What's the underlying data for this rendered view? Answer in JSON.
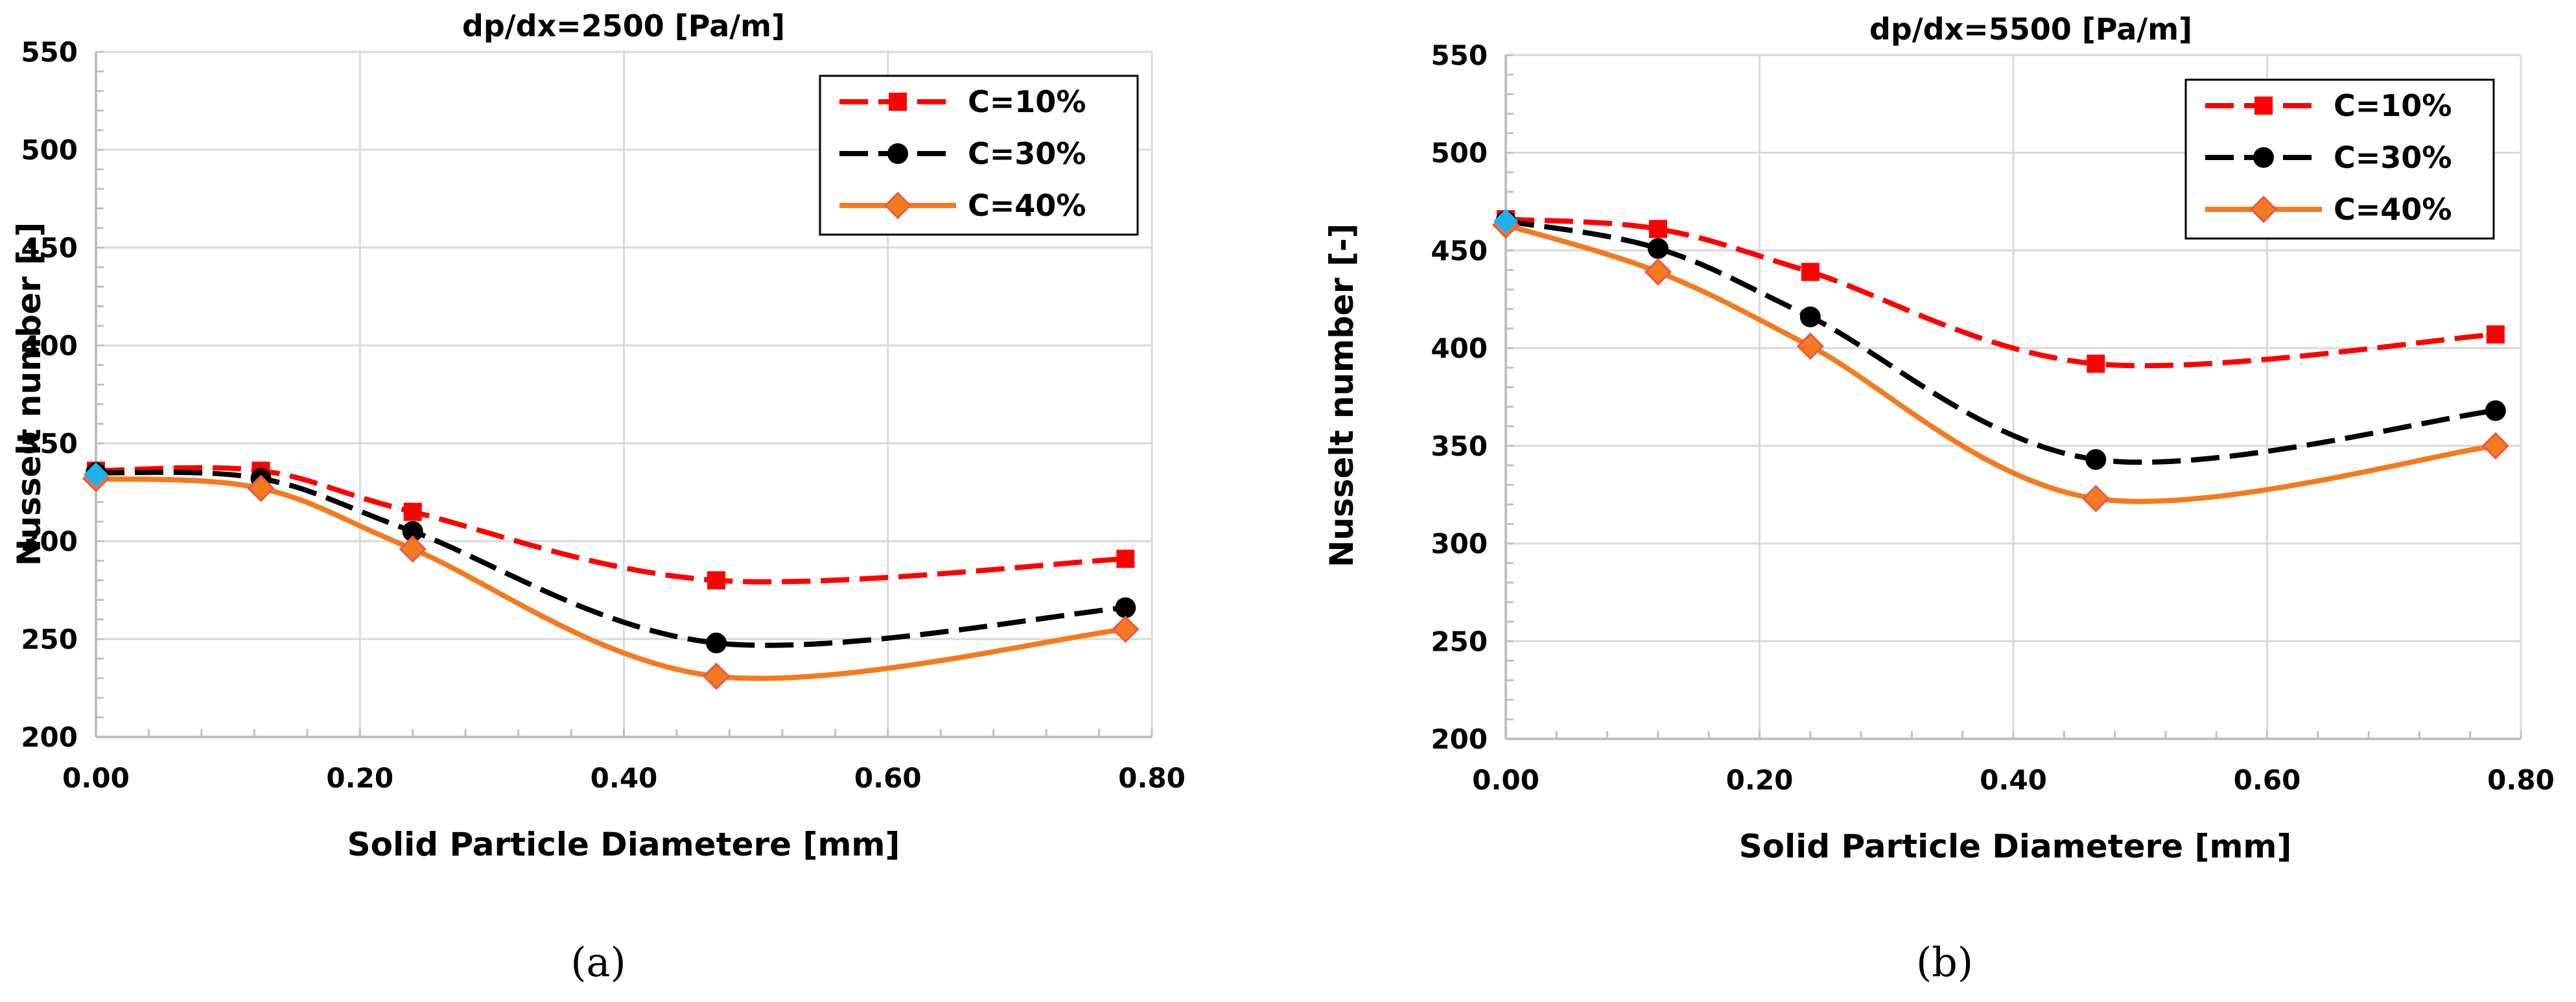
{
  "chart_data": [
    {
      "type": "line",
      "title": "dp/dx=2500 [Pa/m]",
      "caption": "(a)",
      "xlabel": "Solid Particle Diametere [mm]",
      "ylabel": "Nusselt number [-]",
      "xlim": [
        0,
        0.8
      ],
      "ylim": [
        200,
        550
      ],
      "xticks": [
        0,
        0.2,
        0.4,
        0.6,
        0.8
      ],
      "xtick_labels": [
        "0.00",
        "0.20",
        "0.40",
        "0.60",
        "0.80"
      ],
      "yticks": [
        200,
        250,
        300,
        350,
        400,
        450,
        500,
        550
      ],
      "ytick_labels": [
        "200",
        "250",
        "300",
        "350",
        "400",
        "450",
        "500",
        "550"
      ],
      "grid": true,
      "legend_position": "top-right",
      "series": [
        {
          "name": "C=10%",
          "color": "#ff0000",
          "marker": "square",
          "dash": "dashed",
          "x": [
            0,
            0.125,
            0.24,
            0.47,
            0.78
          ],
          "y": [
            336,
            336,
            315,
            280,
            291
          ]
        },
        {
          "name": "C=30%",
          "color": "#000000",
          "marker": "circle",
          "dash": "dashed",
          "x": [
            0,
            0.125,
            0.24,
            0.47,
            0.78
          ],
          "y": [
            335,
            332,
            305,
            248,
            266
          ]
        },
        {
          "name": "C=40%",
          "color": "#f47a1f",
          "marker": "diamond",
          "dash": "solid",
          "x": [
            0,
            0.125,
            0.24,
            0.47,
            0.78
          ],
          "y": [
            332,
            327,
            296,
            231,
            255
          ]
        }
      ],
      "highlight_point": {
        "x": 0,
        "y": 334,
        "color": "#1fb0f0"
      }
    },
    {
      "type": "line",
      "title": "dp/dx=5500 [Pa/m]",
      "caption": "(b)",
      "xlabel": "Solid Particle Diametere [mm]",
      "ylabel": "Nusselt number [-]",
      "xlim": [
        0,
        0.8
      ],
      "ylim": [
        200,
        550
      ],
      "xticks": [
        0,
        0.2,
        0.4,
        0.6,
        0.8
      ],
      "xtick_labels": [
        "0.00",
        "0.20",
        "0.40",
        "0.60",
        "0.80"
      ],
      "yticks": [
        200,
        250,
        300,
        350,
        400,
        450,
        500,
        550
      ],
      "ytick_labels": [
        "200",
        "250",
        "300",
        "350",
        "400",
        "450",
        "500",
        "550"
      ],
      "grid": true,
      "legend_position": "top-right",
      "series": [
        {
          "name": "C=10%",
          "color": "#ff0000",
          "marker": "square",
          "dash": "dashed",
          "x": [
            0,
            0.12,
            0.24,
            0.465,
            0.78
          ],
          "y": [
            466,
            461,
            439,
            392,
            407
          ]
        },
        {
          "name": "C=30%",
          "color": "#000000",
          "marker": "circle",
          "dash": "dashed",
          "x": [
            0,
            0.12,
            0.24,
            0.465,
            0.78
          ],
          "y": [
            465,
            451,
            416,
            343,
            368
          ]
        },
        {
          "name": "C=40%",
          "color": "#f47a1f",
          "marker": "diamond",
          "dash": "solid",
          "x": [
            0,
            0.12,
            0.24,
            0.465,
            0.78
          ],
          "y": [
            463,
            439,
            401,
            323,
            350
          ]
        }
      ],
      "highlight_point": {
        "x": 0,
        "y": 465,
        "color": "#1fb0f0"
      }
    }
  ]
}
